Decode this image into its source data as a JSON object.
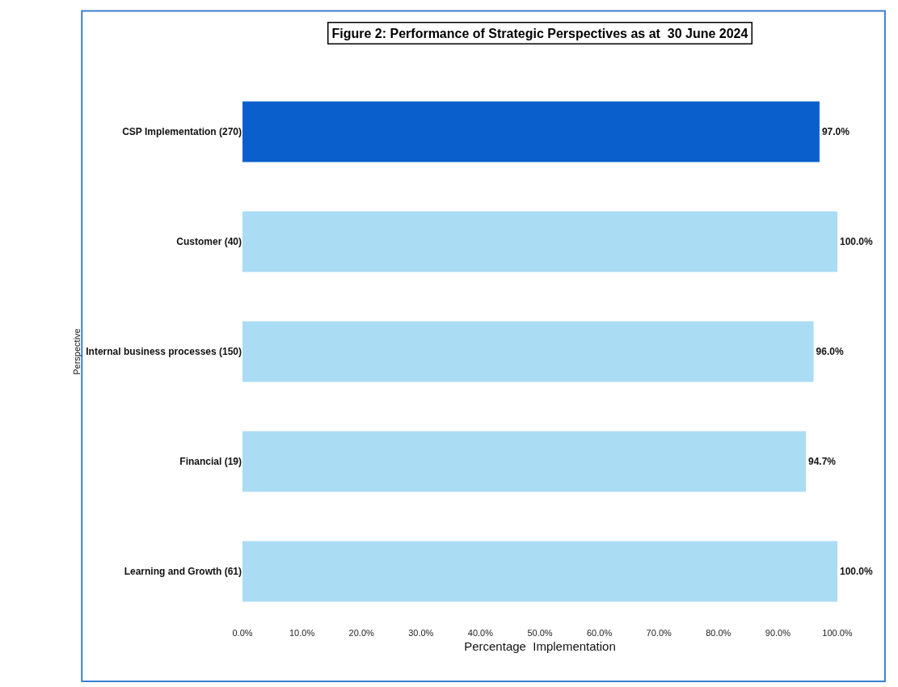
{
  "chart_data": {
    "type": "bar",
    "orientation": "horizontal",
    "title": "Figure 2: Performance of Strategic Perspectives as at  30 June 2024",
    "xlabel": "Percentage  Implementation",
    "ylabel": "Perspective",
    "categories": [
      "CSP Implementation (270)",
      "Customer (40)",
      "Internal business processes (150)",
      "Financial (19)",
      "Learning and Growth (61)"
    ],
    "values": [
      97.0,
      100.0,
      96.0,
      94.7,
      100.0
    ],
    "colors": [
      "#0b5fcc",
      "#aadcf4",
      "#aadcf4",
      "#aadcf4",
      "#aadcf4"
    ],
    "value_labels": [
      "97.0%",
      "100.0%",
      "96.0%",
      "94.7%",
      "100.0%"
    ],
    "xlim": [
      0,
      100
    ],
    "xticks": [
      {
        "value": 0,
        "label": "0.0%"
      },
      {
        "value": 10,
        "label": "10.0%"
      },
      {
        "value": 20,
        "label": "20.0%"
      },
      {
        "value": 30,
        "label": "30.0%"
      },
      {
        "value": 40,
        "label": "40.0%"
      },
      {
        "value": 50,
        "label": "50.0%"
      },
      {
        "value": 60,
        "label": "60.0%"
      },
      {
        "value": 70,
        "label": "70.0%"
      },
      {
        "value": 80,
        "label": "80.0%"
      },
      {
        "value": 90,
        "label": "90.0%"
      },
      {
        "value": 100,
        "label": "100.0%"
      }
    ],
    "grid": false
  }
}
